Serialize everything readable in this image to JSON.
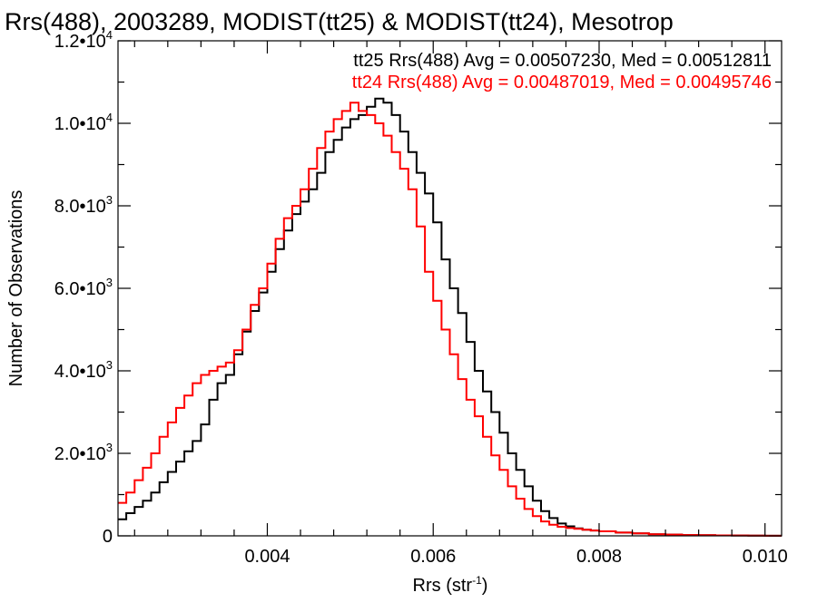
{
  "chart_data": {
    "type": "line",
    "title": "Rrs(488), 2003289, MODIST(tt25) & MODIST(tt24), Mesotrop",
    "xlabel": "Rrs (str",
    "xlabel_sup": "-1",
    "xlabel_suffix": ")",
    "ylabel": "Number of Observations",
    "xlim": [
      0.0022,
      0.0102
    ],
    "ylim": [
      0,
      12000
    ],
    "x_ticks": [
      {
        "value": 0.004,
        "label": "0.004"
      },
      {
        "value": 0.006,
        "label": "0.006"
      },
      {
        "value": 0.008,
        "label": "0.008"
      },
      {
        "value": 0.01,
        "label": "0.010"
      }
    ],
    "y_ticks": [
      {
        "value": 0,
        "mant": "0",
        "exp": ""
      },
      {
        "value": 2000,
        "mant": "2.0•10",
        "exp": "3"
      },
      {
        "value": 4000,
        "mant": "4.0•10",
        "exp": "3"
      },
      {
        "value": 6000,
        "mant": "6.0•10",
        "exp": "3"
      },
      {
        "value": 8000,
        "mant": "8.0•10",
        "exp": "3"
      },
      {
        "value": 10000,
        "mant": "1.0•10",
        "exp": "4"
      },
      {
        "value": 12000,
        "mant": "1.2•10",
        "exp": "4"
      }
    ],
    "annotations": [
      {
        "text": "tt25 Rrs(488) Avg = 0.00507230, Med = 0.00512811",
        "color": "#000000"
      },
      {
        "text": "tt24 Rrs(488) Avg = 0.00487019, Med = 0.00495746",
        "color": "#ff0000"
      }
    ],
    "series": [
      {
        "color": "#000000",
        "x": [
          0.0022,
          0.0023,
          0.0024,
          0.0025,
          0.0026,
          0.0027,
          0.0028,
          0.0029,
          0.003,
          0.0031,
          0.0032,
          0.0033,
          0.0034,
          0.0035,
          0.0036,
          0.0037,
          0.0038,
          0.0039,
          0.004,
          0.0041,
          0.0042,
          0.0043,
          0.0044,
          0.0045,
          0.0046,
          0.0047,
          0.0048,
          0.0049,
          0.005,
          0.0051,
          0.0052,
          0.0053,
          0.0054,
          0.0055,
          0.0056,
          0.0057,
          0.0058,
          0.0059,
          0.006,
          0.0061,
          0.0062,
          0.0063,
          0.0064,
          0.0065,
          0.0066,
          0.0067,
          0.0068,
          0.0069,
          0.007,
          0.0071,
          0.0072,
          0.0073,
          0.0074,
          0.0075,
          0.0076,
          0.0077,
          0.0078,
          0.0079,
          0.008,
          0.0082,
          0.0084,
          0.0086,
          0.0088,
          0.009,
          0.0092,
          0.0094,
          0.0096,
          0.0098,
          0.01,
          0.0102
        ],
        "y": [
          400,
          550,
          700,
          850,
          1050,
          1300,
          1550,
          1800,
          2050,
          2300,
          2700,
          3300,
          3700,
          3900,
          4400,
          4950,
          5450,
          5900,
          6400,
          6950,
          7400,
          7800,
          8100,
          8400,
          8800,
          9300,
          9600,
          9900,
          10100,
          10200,
          10400,
          10600,
          10500,
          10200,
          9800,
          9300,
          8800,
          8300,
          7600,
          6700,
          6000,
          5400,
          4700,
          4000,
          3500,
          3000,
          2500,
          2000,
          1600,
          1200,
          850,
          600,
          430,
          300,
          230,
          180,
          150,
          130,
          110,
          80,
          60,
          40,
          30,
          20,
          15,
          10,
          8,
          5,
          3,
          2
        ]
      },
      {
        "color": "#ff0000",
        "x": [
          0.0022,
          0.0023,
          0.0024,
          0.0025,
          0.0026,
          0.0027,
          0.0028,
          0.0029,
          0.003,
          0.0031,
          0.0032,
          0.0033,
          0.0034,
          0.0035,
          0.0036,
          0.0037,
          0.0038,
          0.0039,
          0.004,
          0.0041,
          0.0042,
          0.0043,
          0.0044,
          0.0045,
          0.0046,
          0.0047,
          0.0048,
          0.0049,
          0.005,
          0.0051,
          0.0052,
          0.0053,
          0.0054,
          0.0055,
          0.0056,
          0.0057,
          0.0058,
          0.0059,
          0.006,
          0.0061,
          0.0062,
          0.0063,
          0.0064,
          0.0065,
          0.0066,
          0.0067,
          0.0068,
          0.0069,
          0.007,
          0.0071,
          0.0072,
          0.0073,
          0.0074,
          0.0075,
          0.0076,
          0.0077,
          0.0078,
          0.0079,
          0.008,
          0.0082,
          0.0084,
          0.0086,
          0.0088,
          0.009,
          0.0092,
          0.0094,
          0.0096,
          0.0098,
          0.01,
          0.0102
        ],
        "y": [
          800,
          1050,
          1350,
          1650,
          2000,
          2400,
          2750,
          3100,
          3400,
          3700,
          3900,
          4000,
          4100,
          4200,
          4500,
          5000,
          5600,
          6000,
          6600,
          7200,
          7700,
          8000,
          8400,
          8900,
          9400,
          9800,
          10100,
          10300,
          10500,
          10300,
          10200,
          10000,
          9700,
          9300,
          8900,
          8400,
          7500,
          6400,
          5700,
          5000,
          4400,
          3800,
          3300,
          2900,
          2400,
          1950,
          1600,
          1200,
          900,
          650,
          480,
          350,
          270,
          220,
          190,
          170,
          150,
          130,
          110,
          80,
          60,
          40,
          30,
          20,
          15,
          10,
          8,
          5,
          3,
          2
        ]
      }
    ]
  }
}
